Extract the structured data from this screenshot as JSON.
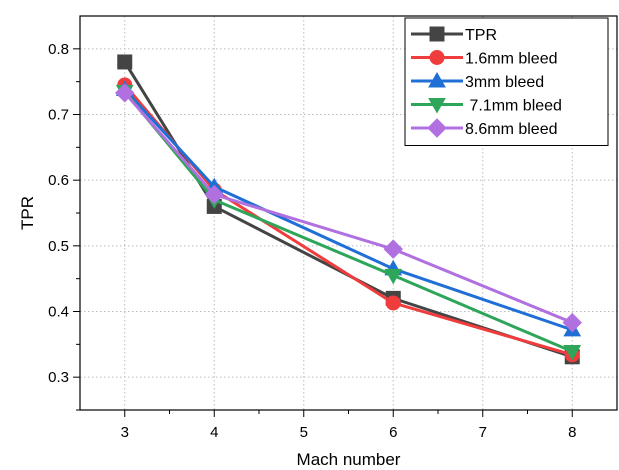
{
  "chart_data": {
    "type": "line",
    "xlabel": "Mach number",
    "ylabel": "TPR",
    "xlim": [
      2.5,
      8.5
    ],
    "ylim": [
      0.25,
      0.85
    ],
    "xticks": [
      "3",
      "4",
      "5",
      "6",
      "7",
      "8"
    ],
    "yticks": [
      "0.3",
      "0.4",
      "0.5",
      "0.6",
      "0.7",
      "0.8"
    ],
    "grid": true,
    "legend_position": "top-right",
    "series": [
      {
        "name": "TPR",
        "marker": "square",
        "color": "#444444",
        "x": [
          3,
          4,
          6,
          8
        ],
        "y": [
          0.78,
          0.56,
          0.42,
          0.331
        ]
      },
      {
        "name": "1.6mm bleed",
        "marker": "circle",
        "color": "#f03c3c",
        "x": [
          3,
          4,
          6,
          8
        ],
        "y": [
          0.745,
          0.585,
          0.413,
          0.334
        ]
      },
      {
        "name": "3mm bleed",
        "marker": "triangle-up",
        "color": "#1f6fd6",
        "x": [
          3,
          4,
          6,
          8
        ],
        "y": [
          0.738,
          0.59,
          0.465,
          0.372
        ]
      },
      {
        "name": " 7.1mm bleed",
        "marker": "triangle-down",
        "color": "#2ea65a",
        "x": [
          3,
          4,
          6,
          8
        ],
        "y": [
          0.735,
          0.57,
          0.455,
          0.339
        ]
      },
      {
        "name": "8.6mm bleed",
        "marker": "diamond",
        "color": "#b070e0",
        "x": [
          3,
          4,
          6,
          8
        ],
        "y": [
          0.733,
          0.578,
          0.495,
          0.383
        ]
      }
    ]
  }
}
